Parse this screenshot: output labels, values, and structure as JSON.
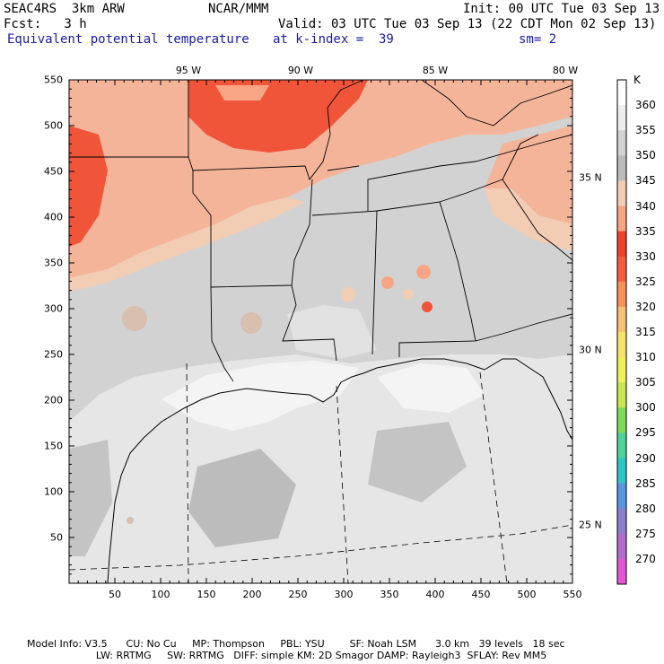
{
  "header": {
    "model": "SEAC4RS  3km ARW",
    "org": "NCAR/MMM",
    "init": "Init: 00 UTC Tue 03 Sep 13",
    "fcst": "Fcst:   3 h",
    "valid": "Valid: 03 UTC Tue 03 Sep 13 (22 CDT Mon 02 Sep 13)",
    "field": "Equivalent potential temperature",
    "level": "at k-index =  39",
    "smooth": "sm= 2"
  },
  "map": {
    "lon_labels": [
      "95 W",
      "90 W",
      "85 W",
      "80 W"
    ],
    "lat_labels": [
      "35 N",
      "30 N",
      "25 N"
    ],
    "x_ticks": [
      "50",
      "100",
      "150",
      "200",
      "250",
      "300",
      "350",
      "400",
      "450",
      "500",
      "550"
    ],
    "y_ticks": [
      "550",
      "500",
      "450",
      "400",
      "350",
      "300",
      "250",
      "200",
      "150",
      "100",
      "50"
    ]
  },
  "colorbar": {
    "unit": "K",
    "levels": [
      "360",
      "355",
      "350",
      "345",
      "340",
      "335",
      "330",
      "325",
      "320",
      "315",
      "310",
      "305",
      "300",
      "295",
      "290",
      "285",
      "280",
      "275",
      "270"
    ],
    "colors": [
      "#ffffff",
      "#eeeeee",
      "#d2d2d2",
      "#bcbcbc",
      "#f2cdb4",
      "#f7a585",
      "#f0412a",
      "#f75b3f",
      "#f79158",
      "#f8c275",
      "#f8e36a",
      "#eef05c",
      "#c9e653",
      "#7fda58",
      "#4dd49a",
      "#2fc6c6",
      "#5a95e0",
      "#8c7fd0",
      "#b26cd0",
      "#e356d6"
    ]
  },
  "footer": {
    "line1": "Model Info: V3.5      CU: No Cu     MP: Thompson     PBL: YSU        SF: Noah LSM      3.0 km   39 levels   18 sec",
    "line2": "                      LW: RRTMG     SW: RRTMG   DIFF: simple KM: 2D Smagor DAMP: Rayleigh3  SFLAY: Rev MM5"
  }
}
